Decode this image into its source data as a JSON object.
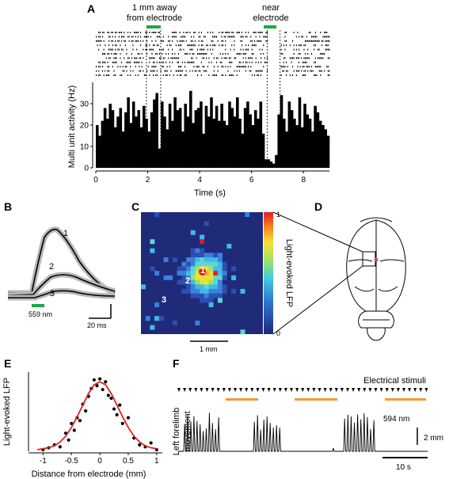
{
  "panels": {
    "a": {
      "label": "A",
      "annotation_far": [
        "1 mm away",
        "from electrode"
      ],
      "annotation_near": [
        "near",
        "electrode"
      ],
      "marker_color": "#1aaa47"
    },
    "b": {
      "label": "B",
      "trace_labels": [
        "1",
        "2",
        "3"
      ],
      "stim_label": "559 nm",
      "scalebar_label": "20 ms",
      "stim_color": "#1aaa47"
    },
    "c": {
      "label": "C",
      "point_labels": [
        "1",
        "2",
        "3"
      ],
      "colorbar_max": "1",
      "colorbar_min": "0",
      "colorbar_label": "Light-evoked LFP",
      "scalebar_label": "1 mm"
    },
    "d": {
      "label": "D"
    },
    "e": {
      "label": "E",
      "fit_color": "#e02020"
    },
    "f": {
      "label": "F",
      "stimuli_label": "Electrical stimuli",
      "ylabel": [
        "Left forelimb",
        "movement"
      ],
      "light_label": "594 nm",
      "light_color": "#f39a35",
      "amp_scale_label": "2 mm",
      "time_scale_label": "10 s"
    }
  },
  "chart_data": [
    {
      "panel": "A",
      "type": "bar",
      "title": "",
      "xlabel": "Time (s)",
      "ylabel": "Multi unit activity (Hz)",
      "xlim": [
        0,
        9
      ],
      "ylim": [
        0,
        40
      ],
      "xticks": [
        0,
        2,
        4,
        6,
        8
      ],
      "yticks": [
        0,
        10,
        20,
        30
      ],
      "marker_intervals_s": [
        [
          1.95,
          2.5
        ],
        [
          6.6,
          7.1
        ]
      ],
      "bin_width_s": 0.1,
      "x": [
        0.0,
        0.1,
        0.2,
        0.3,
        0.4,
        0.5,
        0.6,
        0.7,
        0.8,
        0.9,
        1.0,
        1.1,
        1.2,
        1.3,
        1.4,
        1.5,
        1.6,
        1.7,
        1.8,
        1.9,
        2.0,
        2.1,
        2.2,
        2.3,
        2.4,
        2.5,
        2.6,
        2.7,
        2.8,
        2.9,
        3.0,
        3.1,
        3.2,
        3.3,
        3.4,
        3.5,
        3.6,
        3.7,
        3.8,
        3.9,
        4.0,
        4.1,
        4.2,
        4.3,
        4.4,
        4.5,
        4.6,
        4.7,
        4.8,
        4.9,
        5.0,
        5.1,
        5.2,
        5.3,
        5.4,
        5.5,
        5.6,
        5.7,
        5.8,
        5.9,
        6.0,
        6.1,
        6.2,
        6.3,
        6.4,
        6.5,
        6.6,
        6.7,
        6.8,
        6.9,
        7.0,
        7.1,
        7.2,
        7.3,
        7.4,
        7.5,
        7.6,
        7.7,
        7.8,
        7.9,
        8.0,
        8.1,
        8.2,
        8.3,
        8.4,
        8.5,
        8.6,
        8.7,
        8.8,
        8.9
      ],
      "values": [
        20,
        15,
        22,
        28,
        23,
        30,
        27,
        19,
        24,
        28,
        17,
        26,
        33,
        21,
        31,
        24,
        27,
        19,
        29,
        23,
        17,
        26,
        32,
        35,
        9,
        31,
        24,
        18,
        30,
        22,
        33,
        27,
        28,
        17,
        30,
        24,
        36,
        21,
        27,
        28,
        31,
        16,
        29,
        24,
        33,
        23,
        29,
        22,
        30,
        22,
        20,
        31,
        28,
        24,
        33,
        23,
        16,
        28,
        31,
        25,
        20,
        27,
        23,
        31,
        16,
        4,
        4,
        3,
        2,
        6,
        25,
        34,
        23,
        17,
        31,
        27,
        23,
        20,
        33,
        19,
        30,
        25,
        23,
        17,
        29,
        26,
        22,
        20,
        18,
        15
      ]
    },
    {
      "panel": "E",
      "type": "scatter",
      "title": "",
      "xlabel": "Distance from electrode (mm)",
      "ylabel": "Light-evoked LFP",
      "xlim": [
        -1.2,
        1.1
      ],
      "ylim": [
        0,
        0.8
      ],
      "xticks": [
        -1,
        -0.5,
        0,
        0.5,
        1
      ],
      "xtick_labels": [
        "-1",
        "-0.5",
        "0",
        "0.5",
        "1"
      ],
      "series": [
        {
          "x": [
            -1.0,
            -0.9,
            -0.8,
            -0.7,
            -0.6,
            -0.55,
            -0.5,
            -0.45,
            -0.4,
            -0.35,
            -0.3,
            -0.25,
            -0.2,
            -0.15,
            -0.1,
            -0.05,
            0.0,
            0.05,
            0.1,
            0.15,
            0.2,
            0.25,
            0.3,
            0.35,
            0.4,
            0.5,
            0.6,
            0.7,
            0.8,
            0.9,
            1.0
          ],
          "y": [
            0.0,
            0.02,
            0.05,
            0.03,
            0.17,
            0.1,
            0.27,
            0.2,
            0.33,
            0.3,
            0.47,
            0.4,
            0.55,
            0.63,
            0.72,
            0.66,
            0.73,
            0.62,
            0.7,
            0.56,
            0.53,
            0.42,
            0.36,
            0.46,
            0.27,
            0.33,
            0.12,
            0.05,
            0.03,
            0.07,
            0.0
          ]
        },
        {
          "x": [
            -1.1,
            -1.0,
            -0.9,
            -0.8,
            -0.7,
            -0.6,
            -0.5,
            -0.4,
            -0.3,
            -0.2,
            -0.1,
            0.0,
            0.1,
            0.2,
            0.3,
            0.4,
            0.5,
            0.6,
            0.7,
            0.8,
            0.9,
            1.0
          ],
          "y": [
            0.0,
            0.01,
            0.02,
            0.04,
            0.08,
            0.14,
            0.23,
            0.34,
            0.46,
            0.58,
            0.67,
            0.7,
            0.67,
            0.58,
            0.46,
            0.34,
            0.23,
            0.14,
            0.08,
            0.04,
            0.02,
            0.01
          ]
        }
      ]
    }
  ]
}
